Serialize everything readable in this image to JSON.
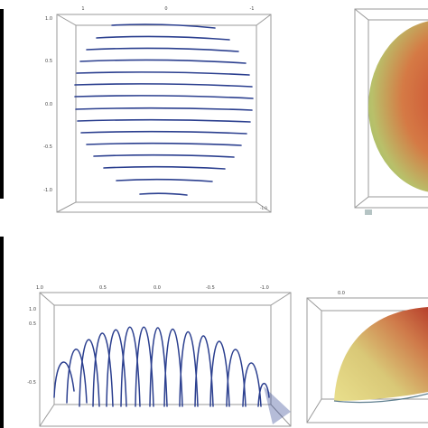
{
  "panels": {
    "top_left": {
      "y_ticks": [
        "1.0",
        "0.5",
        "0.0",
        "-0.5",
        "-1.0"
      ],
      "x_ticks": [
        "1",
        "0",
        "-1"
      ],
      "corner_tick": "-1.0"
    },
    "bottom_left": {
      "x_ticks": [
        "1.0",
        "0.5",
        "0.0",
        "-0.5",
        "-1.0"
      ],
      "y_ticks": [
        "1.0",
        "0.5"
      ],
      "z_ticks": [
        "-0.5"
      ]
    },
    "bottom_right": {
      "tick": "0.0"
    }
  },
  "colors": {
    "curve": "#2b3f8f",
    "box": "#9a9a9a",
    "side_bar": "#000000",
    "surface_red": "#c9452f",
    "surface_green": "#c7d07a",
    "surface_yellow": "#e9df8c"
  }
}
